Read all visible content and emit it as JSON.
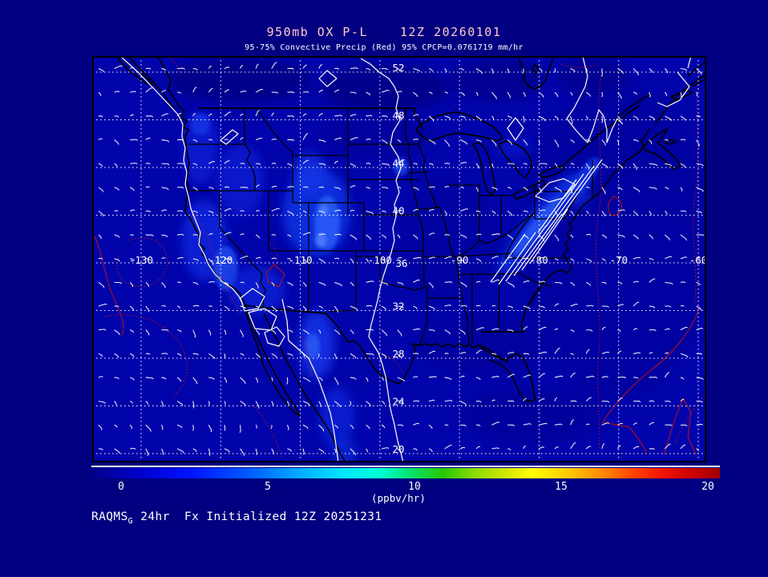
{
  "title": {
    "left": "950mb OX P-L",
    "right": "12Z 20260101"
  },
  "subtitle": "95-75% Convective Precip (Red) 95% CPCP=0.0761719 mm/hr",
  "map_axes": {
    "lat_tick_labels": [
      "52",
      "48",
      "44",
      "40",
      "36",
      "32",
      "28",
      "24",
      "20"
    ],
    "lat_values": [
      52,
      48,
      44,
      40,
      36,
      32,
      28,
      24,
      20
    ],
    "lon_tick_labels": [
      "-130",
      "-120",
      "-110",
      "-100",
      "-90",
      "-80",
      "-70",
      "-60"
    ],
    "lon_values": [
      -130,
      -120,
      -110,
      -100,
      -90,
      -80,
      -70,
      -60
    ]
  },
  "colorbar": {
    "tick_labels": [
      "0",
      "5",
      "10",
      "15",
      "20"
    ],
    "tick_values": [
      0,
      5,
      10,
      15,
      20
    ],
    "min": 0,
    "max": 20,
    "unit": "(ppbv/hr)",
    "gradient": [
      {
        "c": "#00008b",
        "p": 0
      },
      {
        "c": "#0000d0",
        "p": 8
      },
      {
        "c": "#0014ff",
        "p": 16
      },
      {
        "c": "#0064ff",
        "p": 26
      },
      {
        "c": "#00b4ff",
        "p": 34
      },
      {
        "c": "#00e6ff",
        "p": 40
      },
      {
        "c": "#00ffd2",
        "p": 46
      },
      {
        "c": "#00e67d",
        "p": 50
      },
      {
        "c": "#28c800",
        "p": 56
      },
      {
        "c": "#8cdc00",
        "p": 61
      },
      {
        "c": "#d2e600",
        "p": 66
      },
      {
        "c": "#ffff00",
        "p": 70
      },
      {
        "c": "#ffc800",
        "p": 76
      },
      {
        "c": "#ff8c00",
        "p": 81
      },
      {
        "c": "#ff4600",
        "p": 86
      },
      {
        "c": "#f01400",
        "p": 91
      },
      {
        "c": "#c80000",
        "p": 96
      },
      {
        "c": "#a00000",
        "p": 100
      }
    ]
  },
  "footer": {
    "model": "RAQMS",
    "model_subscript": "G",
    "text": " 24hr  Fx Initialized 12Z 20251231"
  },
  "colors": {
    "page_bg": "#000080",
    "map_base": "#0104aa",
    "title_text": "#ffc8c8",
    "text": "#ffffff",
    "frame": "#000000",
    "geo_outline": "#000000",
    "grid_dots": "#ffffff",
    "wind_vectors": "#ffffff",
    "contour_white": "#ffffff",
    "contour_red": "#cc1100"
  }
}
